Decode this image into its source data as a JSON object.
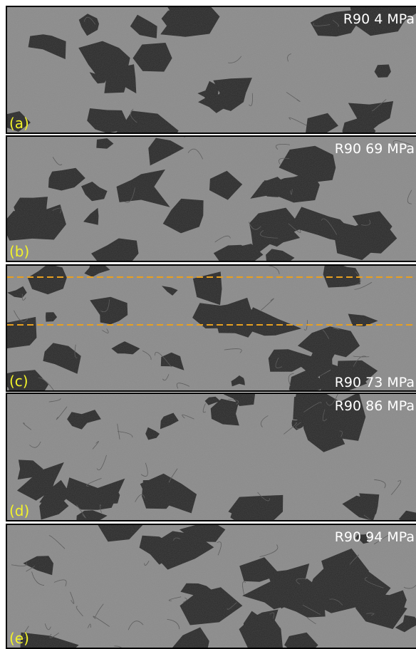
{
  "panels": [
    {
      "label": "(a)",
      "caption": "R90 4 MPa"
    },
    {
      "label": "(b)",
      "caption": "R90 69 MPa"
    },
    {
      "label": "(c)",
      "caption": "R90 73 MPa"
    },
    {
      "label": "(d)",
      "caption": "R90 86 MPa"
    },
    {
      "label": "(e)",
      "caption": "R90 94 MPa"
    }
  ]
}
